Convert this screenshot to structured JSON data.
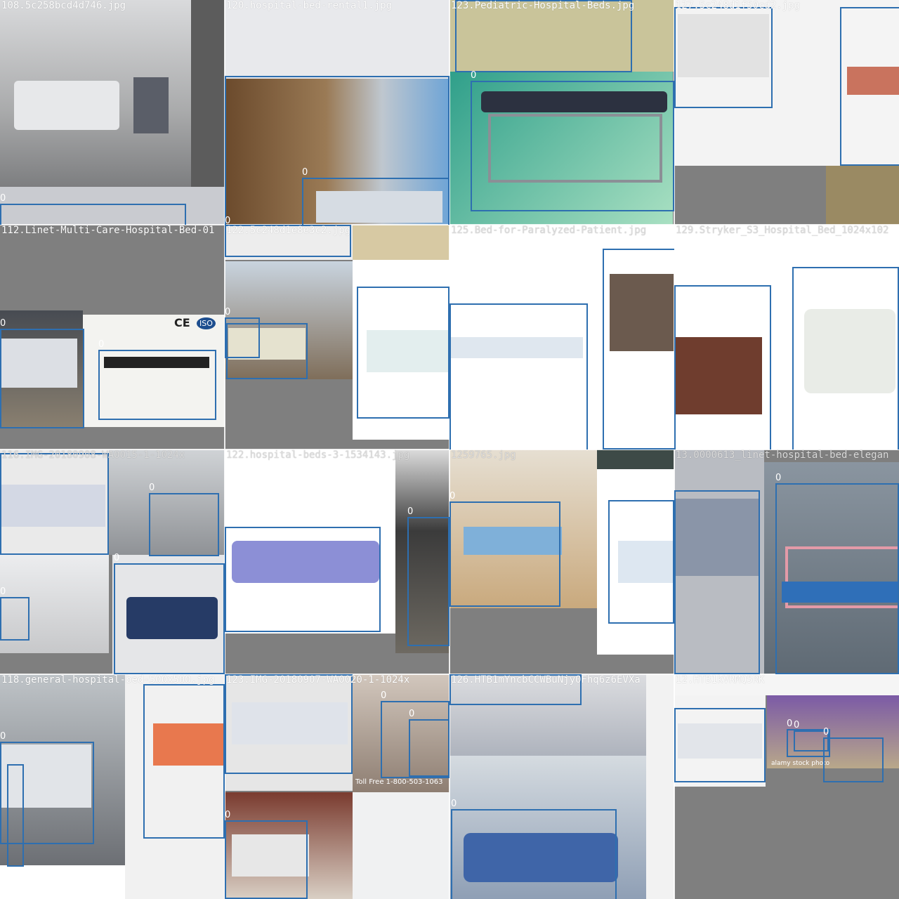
{
  "tiles": [
    {
      "filename": "108.5c258bcd4d746.jpg"
    },
    {
      "filename": "120.hospital-bed-rental1.jpg"
    },
    {
      "filename": "123.Pediatric-Hospital-Beds.jpg"
    },
    {
      "filename": "127.5c248d1f50cd2.jpg"
    },
    {
      "filename": "112.Linet-Multi-Care-Hospital-Bed-01"
    },
    {
      "filename": "122.5c248d1e8e3c2.jpg"
    },
    {
      "filename": "125.Bed-for-Paralyzed-Patient.jpg"
    },
    {
      "filename": "129.Stryker_S3_Hospital_Bed_1024x102"
    },
    {
      "filename": "116.IMG-20180908-WA0015-1-1024x"
    },
    {
      "filename": "122.hospital-beds-3-1534143.jpg"
    },
    {
      "filename": "1259765.jpg"
    },
    {
      "filename": "13.0000613_linet-hospital-bed-elegan"
    },
    {
      "filename": "118.general-hospital-bed-500x500.jpg"
    },
    {
      "filename": "123.IMG-20180907-WA0020-1-1024x"
    },
    {
      "filename": "126.HTB1mYncbCCWBuNjy0Fhq6z6EVXa"
    },
    {
      "filename": "12.HTB1kVRMQ5RK"
    }
  ],
  "class_label": "0",
  "image_text": {
    "ce_mark": "CE",
    "iso_mark": "ISO",
    "toll_free": "Toll Free 1-800-503-1063",
    "stock_watermark": "alamy stock photo"
  },
  "colors": {
    "box": "#2e6fb0",
    "padding_gray": "#808080"
  }
}
